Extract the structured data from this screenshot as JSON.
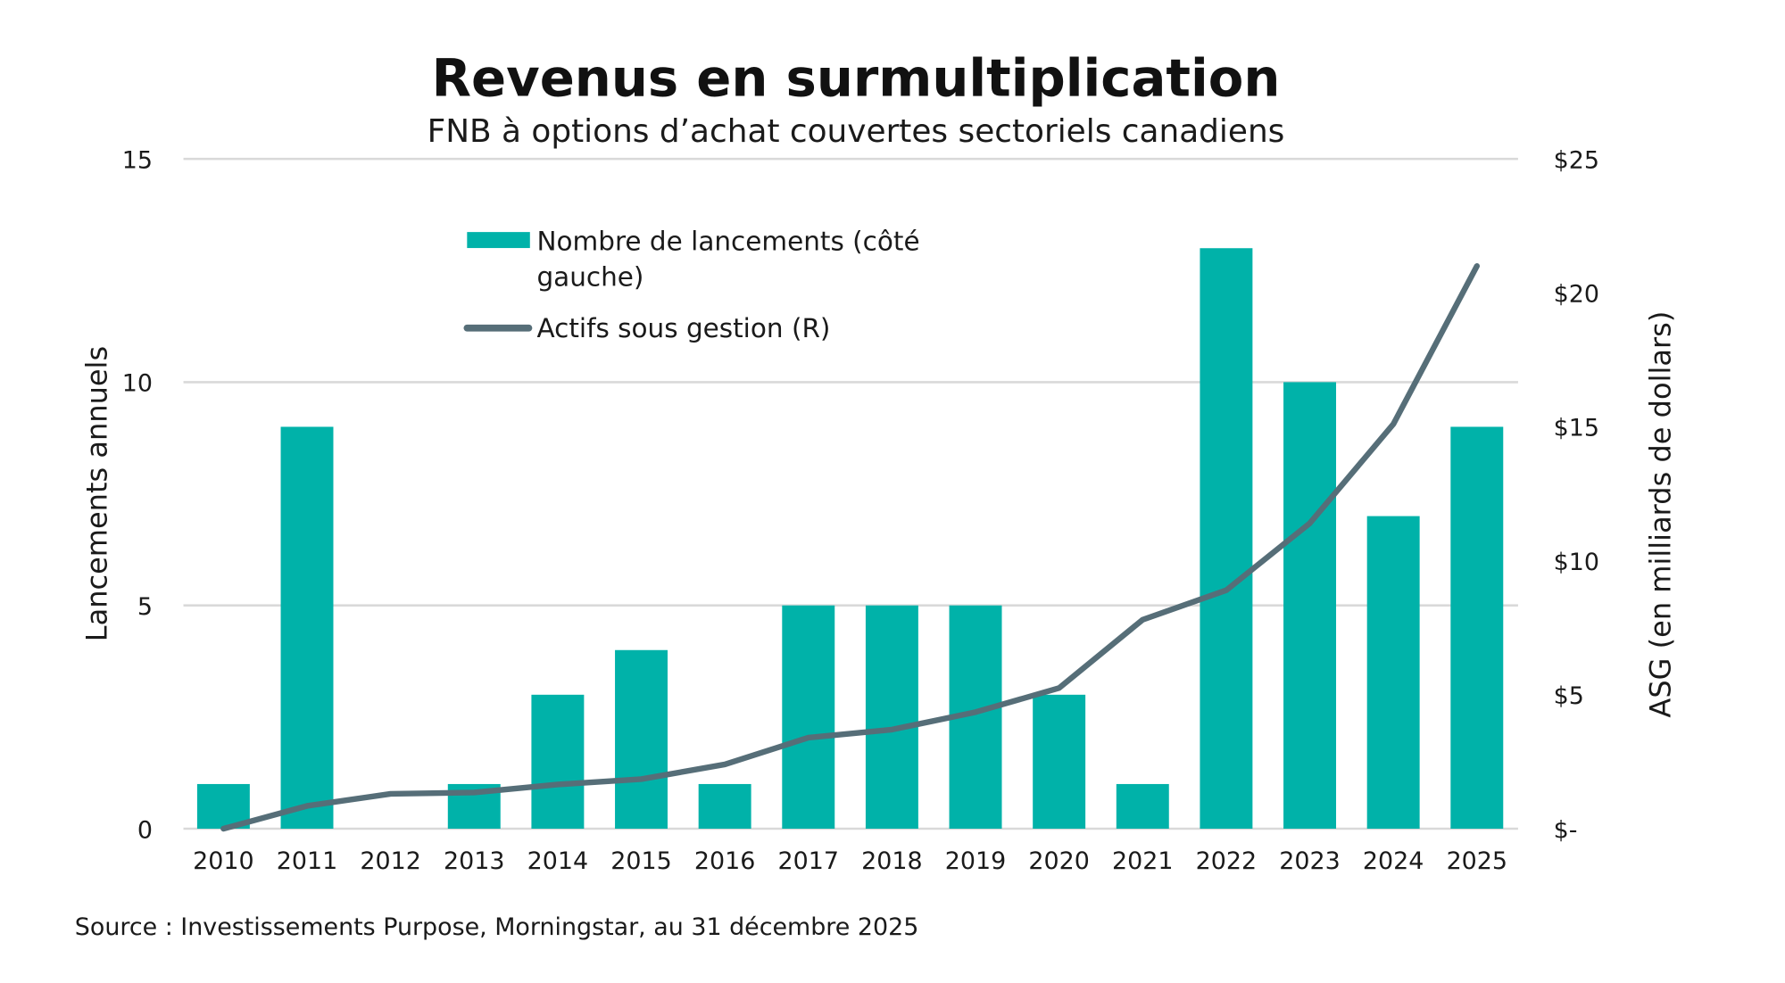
{
  "chart_data": {
    "type": "bar+line",
    "title": "Revenus en surmultiplication",
    "subtitle": "FNB à options d’achat couvertes sectoriels canadiens",
    "categories": [
      "2010",
      "2011",
      "2012",
      "2013",
      "2014",
      "2015",
      "2016",
      "2017",
      "2018",
      "2019",
      "2020",
      "2021",
      "2022",
      "2023",
      "2024",
      "2025"
    ],
    "series": [
      {
        "name": "Nombre de lancements (côté gauche)",
        "type": "bar",
        "axis": "left",
        "color": "#00b2a9",
        "values": [
          1,
          9,
          0,
          1,
          3,
          4,
          1,
          5,
          5,
          5,
          3,
          1,
          13,
          10,
          7,
          9
        ]
      },
      {
        "name": "Actifs sous gestion (R)",
        "type": "line",
        "axis": "right",
        "color": "#566e78",
        "values": [
          0,
          0.85,
          1.3,
          1.35,
          1.65,
          1.85,
          2.4,
          3.4,
          3.7,
          4.35,
          5.25,
          7.8,
          8.9,
          11.4,
          15.1,
          21.0
        ]
      }
    ],
    "ylabel": "Lancements annuels",
    "ylim": [
      0,
      15
    ],
    "yticks": [
      "0",
      "5",
      "10",
      "15"
    ],
    "y2label": "ASG (en milliards de dollars)",
    "y2lim": [
      0,
      25
    ],
    "y2ticks": [
      "$-",
      "$5",
      "$10",
      "$15",
      "$20",
      "$25"
    ],
    "grid": true,
    "legend": "top-left",
    "source": "Source : Investissements Purpose, Morningstar, au 31 décembre 2025"
  }
}
